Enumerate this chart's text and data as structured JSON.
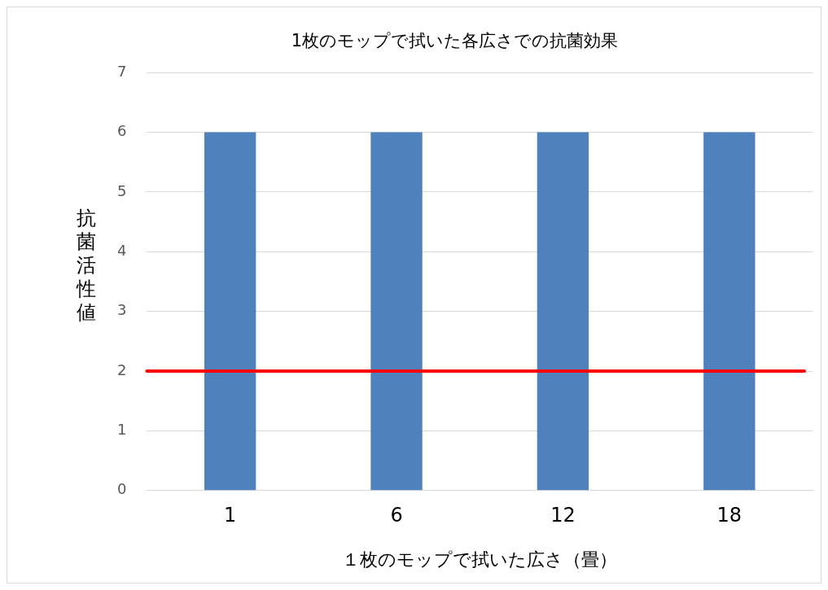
{
  "chart_data": {
    "type": "bar",
    "title": "1枚のモップで拭いた各広さでの抗菌効果",
    "xlabel": "１枚のモップで拭いた広さ（畳）",
    "ylabel": "抗菌活性値",
    "categories": [
      "1",
      "6",
      "12",
      "18"
    ],
    "values": [
      6,
      6,
      6,
      6
    ],
    "color": "#4f81bd",
    "ylim": [
      0,
      7
    ],
    "yticks": [
      0,
      1,
      2,
      3,
      4,
      5,
      6,
      7
    ],
    "grid": "y",
    "ref_lines": [
      {
        "axis": "y",
        "value": 2,
        "color": "#ff0000"
      }
    ]
  }
}
